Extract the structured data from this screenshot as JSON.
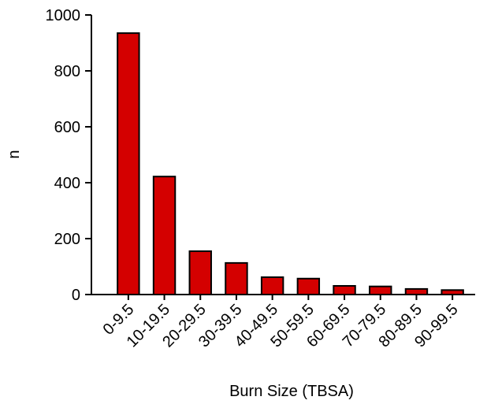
{
  "chart_data": {
    "type": "bar",
    "x_label": "Burn Size (TBSA)",
    "y_label": "n",
    "categories": [
      "0-9.5",
      "10-19.5",
      "20-29.5",
      "30-39.5",
      "40-49.5",
      "50-59.5",
      "60-69.5",
      "70-79.5",
      "80-89.5",
      "90-99.5"
    ],
    "values": [
      935,
      422,
      155,
      113,
      62,
      57,
      31,
      29,
      20,
      16
    ],
    "color": "#d40000",
    "ylim": [
      0,
      1000
    ],
    "yticks": [
      0,
      200,
      400,
      600,
      800,
      1000
    ],
    "grid": false
  }
}
